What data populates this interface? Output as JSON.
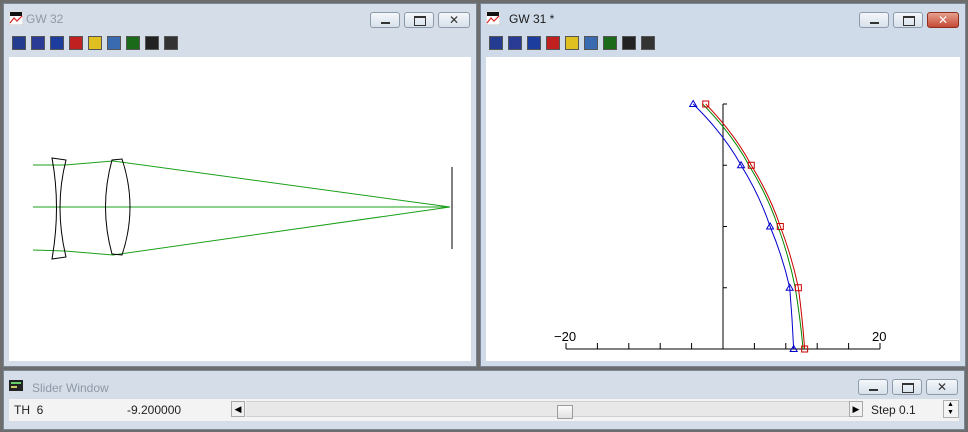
{
  "windows": {
    "gw32": {
      "title": "GW 32",
      "toolbar_icons": [
        "grid-plot-icon",
        "lens-layout-icon",
        "spot-diagram-icon",
        "ray-fan-icon",
        "color-band-icon",
        "wavefront-icon",
        "psf-icon",
        "bar-target-icon",
        "navigate-icon"
      ]
    },
    "gw31": {
      "title": "GW 31 *",
      "toolbar_icons": [
        "grid-plot-icon",
        "lens-layout-icon",
        "spot-diagram-icon",
        "ray-fan-icon",
        "color-band-icon",
        "wavefront-icon",
        "psf-icon",
        "bar-target-icon",
        "navigate-icon"
      ]
    },
    "slider": {
      "title": "Slider Window",
      "param_label": "TH  6",
      "value": "-9.200000",
      "step_label": "Step 0.1",
      "position_fraction": 0.53
    }
  },
  "chart_data": {
    "type": "line",
    "x_axis_ticks": [
      "−20",
      "20"
    ],
    "xlim": [
      -20,
      20
    ],
    "series": [
      {
        "color": "#0000cc",
        "marker": "triangle",
        "points": [
          [
            -3.8,
            1.0
          ],
          [
            2.3,
            0.75
          ],
          [
            6.0,
            0.5
          ],
          [
            8.5,
            0.25
          ],
          [
            9.0,
            0.0
          ]
        ]
      },
      {
        "color": "#008800",
        "marker": "none",
        "points": [
          [
            -2.6,
            1.0
          ],
          [
            3.3,
            0.75
          ],
          [
            7.0,
            0.5
          ],
          [
            9.2,
            0.25
          ],
          [
            10.2,
            0.0
          ]
        ]
      },
      {
        "color": "#cc0000",
        "marker": "square",
        "points": [
          [
            -2.2,
            1.0
          ],
          [
            3.6,
            0.75
          ],
          [
            7.3,
            0.5
          ],
          [
            9.6,
            0.25
          ],
          [
            10.4,
            0.0
          ]
        ]
      }
    ]
  },
  "colors": {
    "rays": "#1aa01a",
    "lens": "#000000",
    "title_inactive": "#8f99a6",
    "close_red": "#c44a35"
  }
}
